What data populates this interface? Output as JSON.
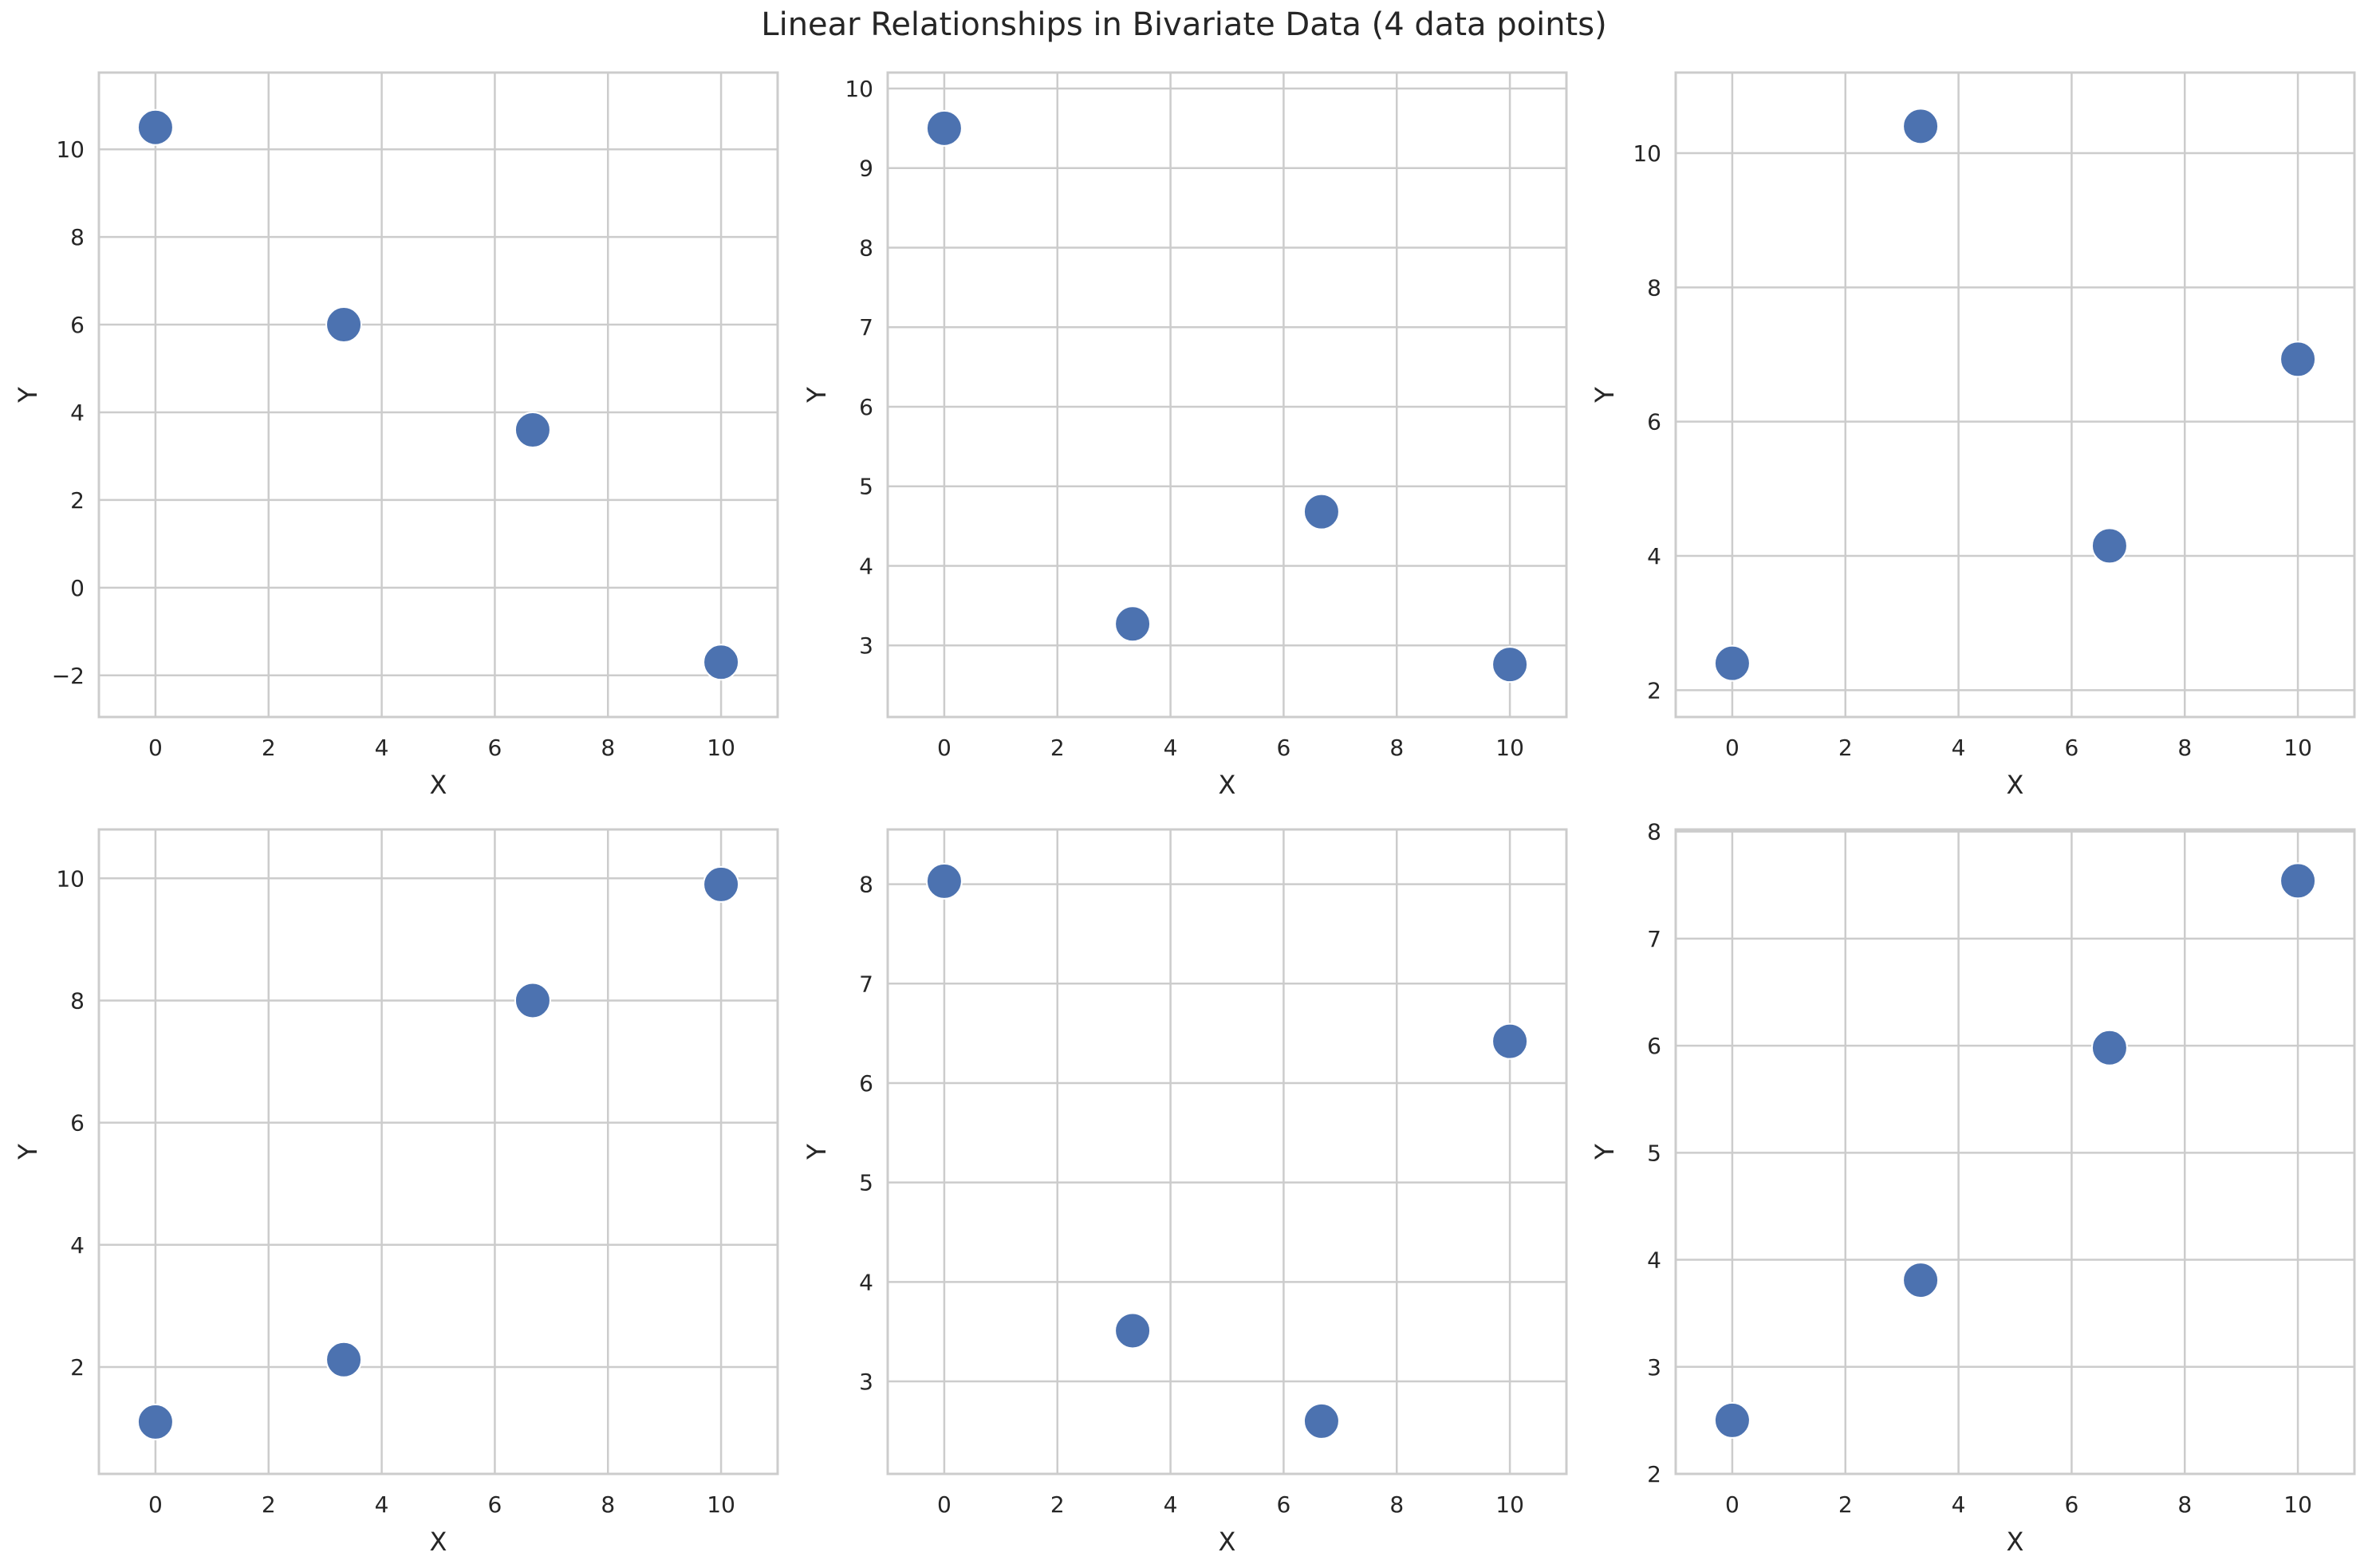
{
  "chart_data": {
    "title": "Linear Relationships in Bivariate Data (4 data points)",
    "style": {
      "marker_color": "#4c72b0",
      "grid_color": "#cccccc",
      "frame_color": "#cccccc",
      "text_color": "#262626"
    },
    "panels": [
      {
        "type": "scatter",
        "xlabel": "X",
        "ylabel": "Y",
        "x": [
          0,
          3.33,
          6.67,
          10
        ],
        "y": [
          10.5,
          6.0,
          3.6,
          -1.7
        ],
        "xlim": [
          -1,
          11
        ],
        "ylim": [
          -2.95,
          11.75
        ],
        "xticks": [
          0,
          2,
          4,
          6,
          8,
          10
        ],
        "yticks": [
          -2,
          0,
          2,
          4,
          6,
          8,
          10
        ],
        "ytick_labels": [
          "−2",
          "0",
          "2",
          "4",
          "6",
          "8",
          "10"
        ],
        "grid": true
      },
      {
        "type": "scatter",
        "xlabel": "X",
        "ylabel": "Y",
        "x": [
          0,
          3.33,
          6.67,
          10
        ],
        "y": [
          9.5,
          3.27,
          4.68,
          2.76
        ],
        "xlim": [
          -1,
          11
        ],
        "ylim": [
          2.1,
          10.2
        ],
        "xticks": [
          0,
          2,
          4,
          6,
          8,
          10
        ],
        "yticks": [
          3,
          4,
          5,
          6,
          7,
          8,
          9,
          10
        ],
        "ytick_labels": [
          "3",
          "4",
          "5",
          "6",
          "7",
          "8",
          "9",
          "10"
        ],
        "grid": true
      },
      {
        "type": "scatter",
        "xlabel": "X",
        "ylabel": "Y",
        "x": [
          0,
          3.33,
          6.67,
          10
        ],
        "y": [
          2.4,
          10.4,
          4.15,
          6.93
        ],
        "xlim": [
          -1,
          11
        ],
        "ylim": [
          1.6,
          11.2
        ],
        "xticks": [
          0,
          2,
          4,
          6,
          8,
          10
        ],
        "yticks": [
          2,
          4,
          6,
          8,
          10
        ],
        "ytick_labels": [
          "2",
          "4",
          "6",
          "8",
          "10"
        ],
        "grid": true
      },
      {
        "type": "scatter",
        "xlabel": "X",
        "ylabel": "Y",
        "x": [
          0,
          3.33,
          6.67,
          10
        ],
        "y": [
          1.1,
          2.12,
          8.0,
          9.9
        ],
        "xlim": [
          -1,
          11
        ],
        "ylim": [
          0.25,
          10.8
        ],
        "xticks": [
          0,
          2,
          4,
          6,
          8,
          10
        ],
        "yticks": [
          2,
          4,
          6,
          8,
          10
        ],
        "ytick_labels": [
          "2",
          "4",
          "6",
          "8",
          "10"
        ],
        "grid": true
      },
      {
        "type": "scatter",
        "xlabel": "X",
        "ylabel": "Y",
        "x": [
          0,
          3.33,
          6.67,
          10
        ],
        "y": [
          8.03,
          3.51,
          2.6,
          6.42
        ],
        "xlim": [
          -1,
          11
        ],
        "ylim": [
          2.07,
          8.55
        ],
        "xticks": [
          0,
          2,
          4,
          6,
          8,
          10
        ],
        "yticks": [
          3,
          4,
          5,
          6,
          7,
          8
        ],
        "ytick_labels": [
          "3",
          "4",
          "5",
          "6",
          "7",
          "8"
        ],
        "grid": true
      },
      {
        "type": "scatter",
        "xlabel": "X",
        "ylabel": "Y",
        "x": [
          0,
          3.33,
          6.67,
          10
        ],
        "y": [
          2.5,
          3.81,
          5.98,
          7.54
        ],
        "xlim": [
          -1,
          11
        ],
        "ylim": [
          2.0,
          8.02
        ],
        "xticks": [
          0,
          2,
          4,
          6,
          8,
          10
        ],
        "yticks": [
          2,
          3,
          4,
          5,
          6,
          7,
          8
        ],
        "ytick_labels": [
          "2",
          "3",
          "4",
          "5",
          "6",
          "7",
          "8"
        ],
        "grid": true
      }
    ]
  }
}
